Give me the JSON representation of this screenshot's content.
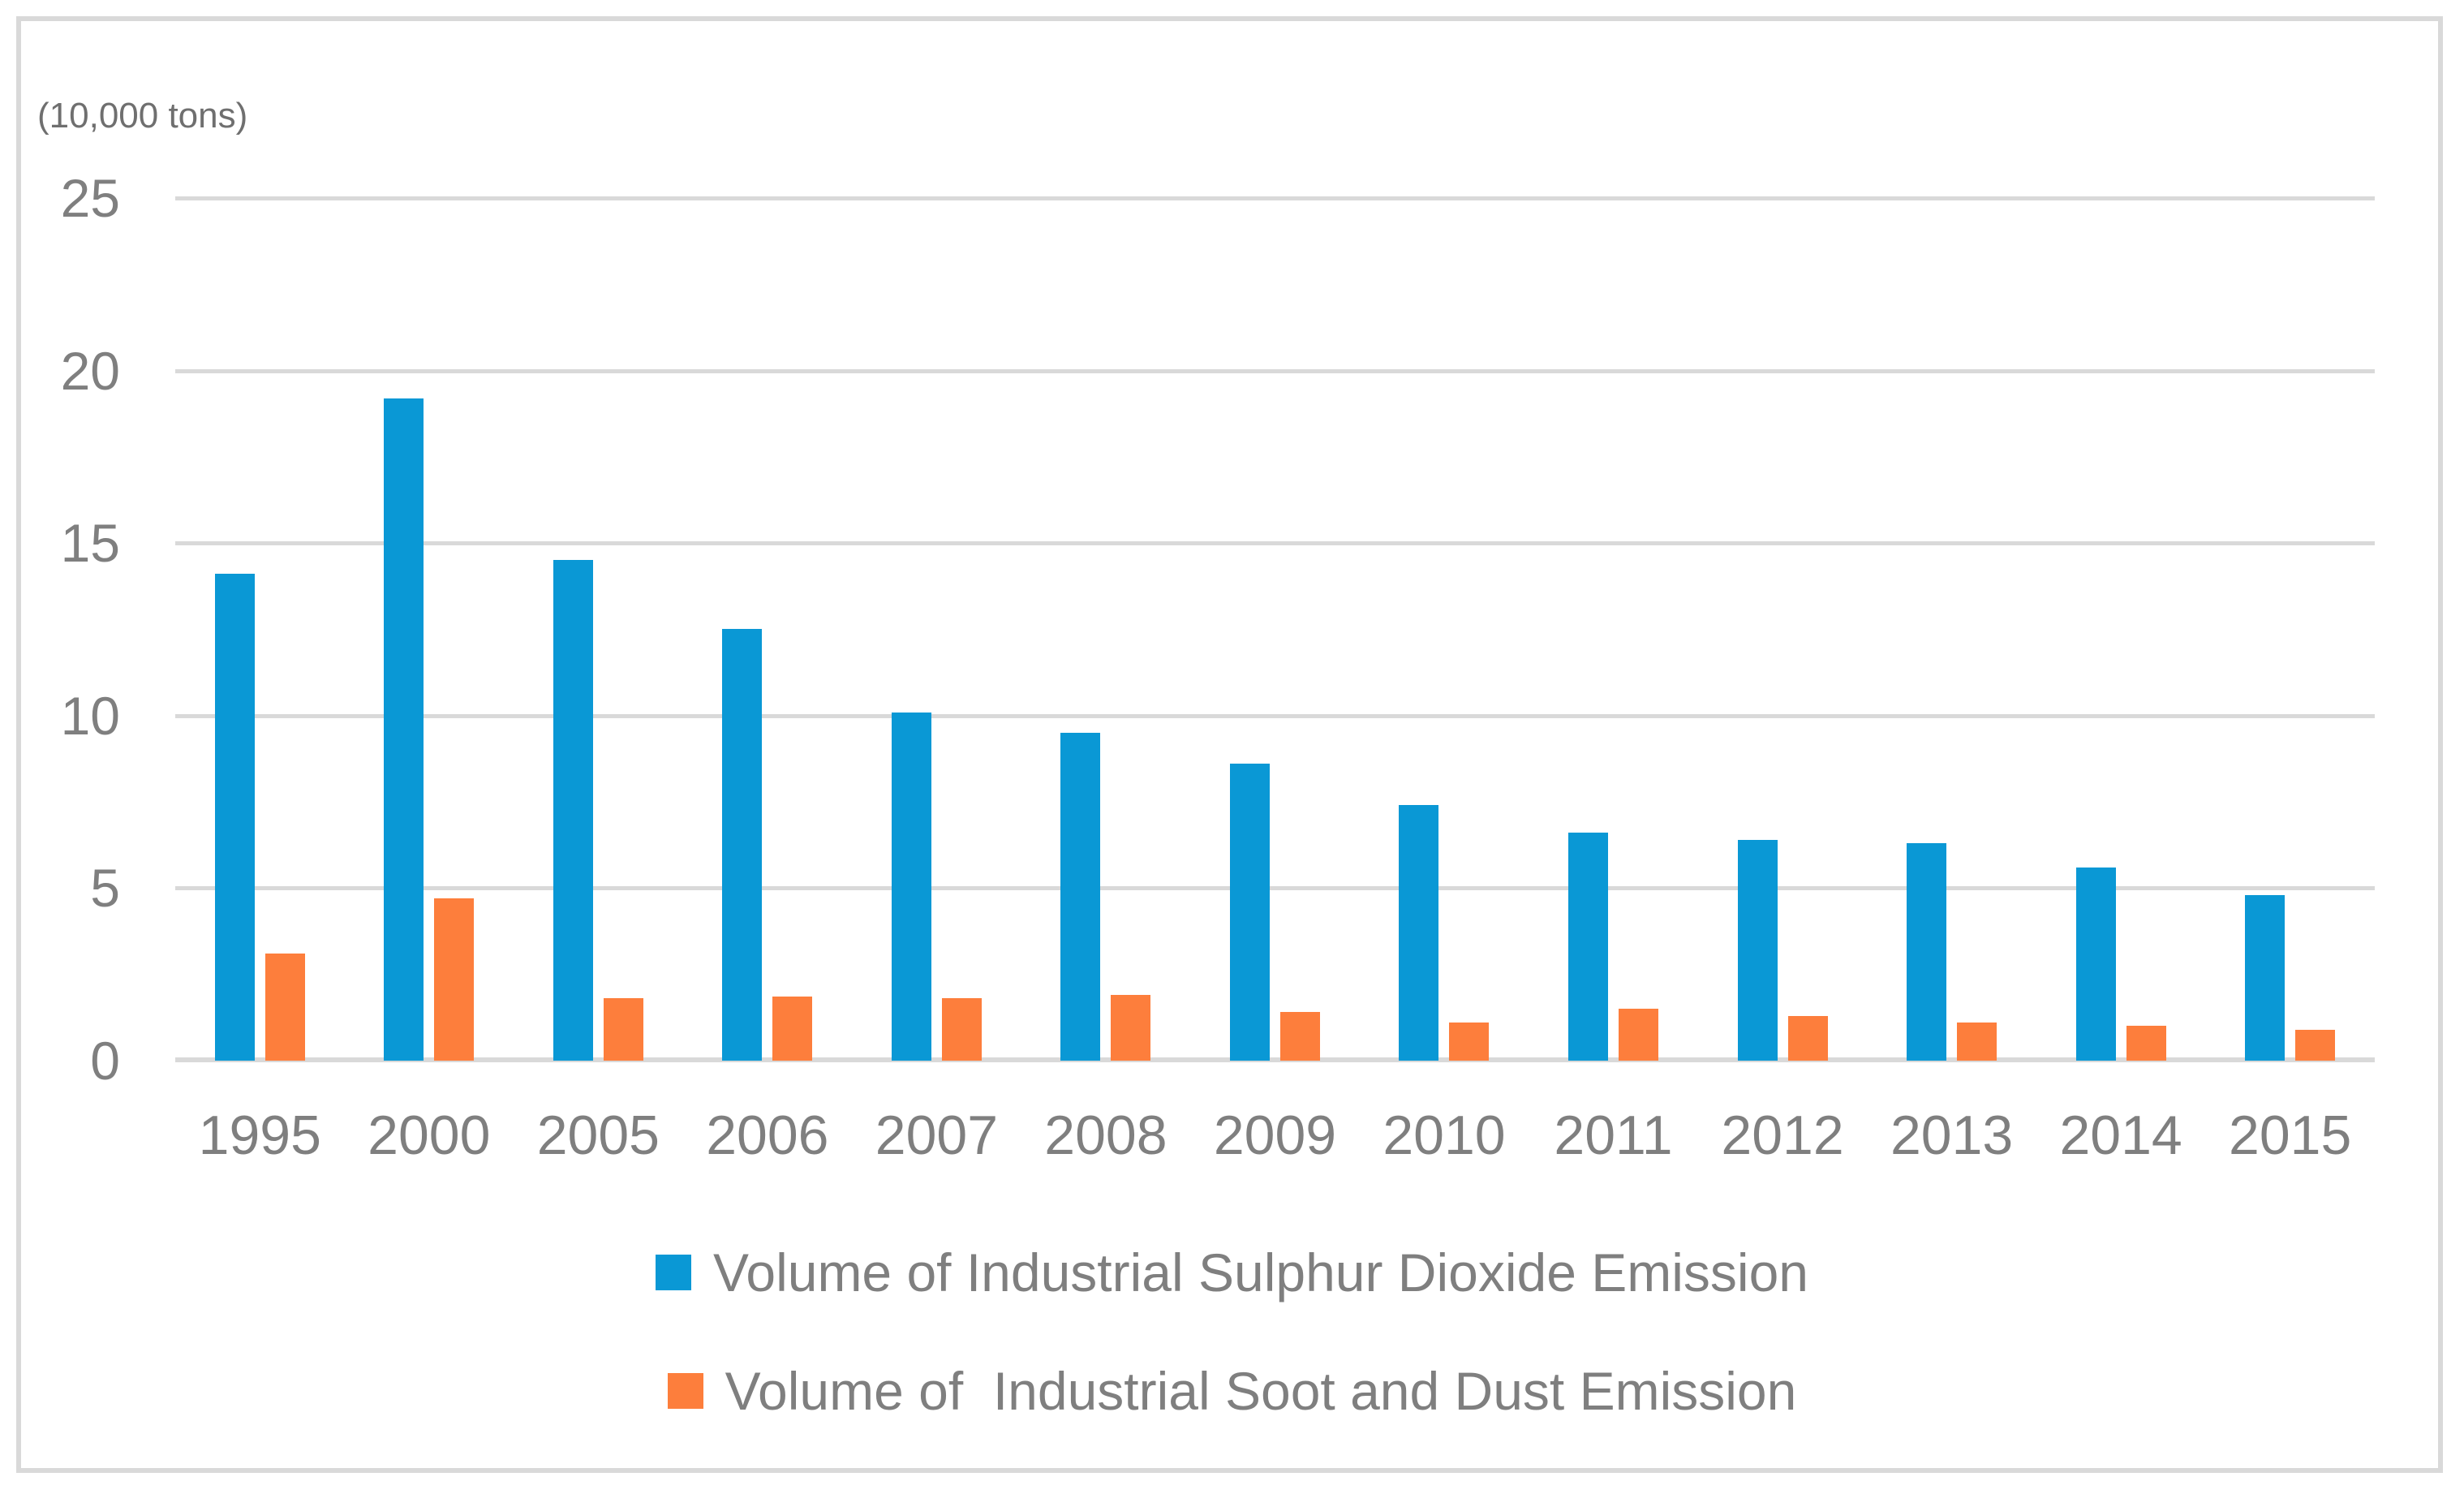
{
  "chart_data": {
    "type": "bar",
    "title": "",
    "unit_label": "(10,000 tons)",
    "categories": [
      "1995",
      "2000",
      "2005",
      "2006",
      "2007",
      "2008",
      "2009",
      "2010",
      "2011",
      "2012",
      "2013",
      "2014",
      "2015"
    ],
    "series": [
      {
        "name": "Volume of Industrial Sulphur Dioxide Emission",
        "color": "#0a98d5",
        "values": [
          14.1,
          19.2,
          14.5,
          12.5,
          10.1,
          9.5,
          8.6,
          7.4,
          6.6,
          6.4,
          6.3,
          5.6,
          4.8
        ]
      },
      {
        "name": "Volume of  Industrial Soot and Dust Emission",
        "color": "#fd7e3c",
        "values": [
          3.1,
          4.7,
          1.8,
          1.85,
          1.8,
          1.9,
          1.4,
          1.1,
          1.5,
          1.3,
          1.1,
          1.0,
          0.9
        ]
      }
    ],
    "ylim": [
      0,
      25
    ],
    "y_ticks": [
      25,
      20,
      15,
      10,
      5,
      0
    ],
    "xlabel": "",
    "ylabel": "",
    "grid": true,
    "gridline_color": "#d9d9d9",
    "axis_text_color": "#7f7f7f",
    "legend_position": "bottom"
  }
}
